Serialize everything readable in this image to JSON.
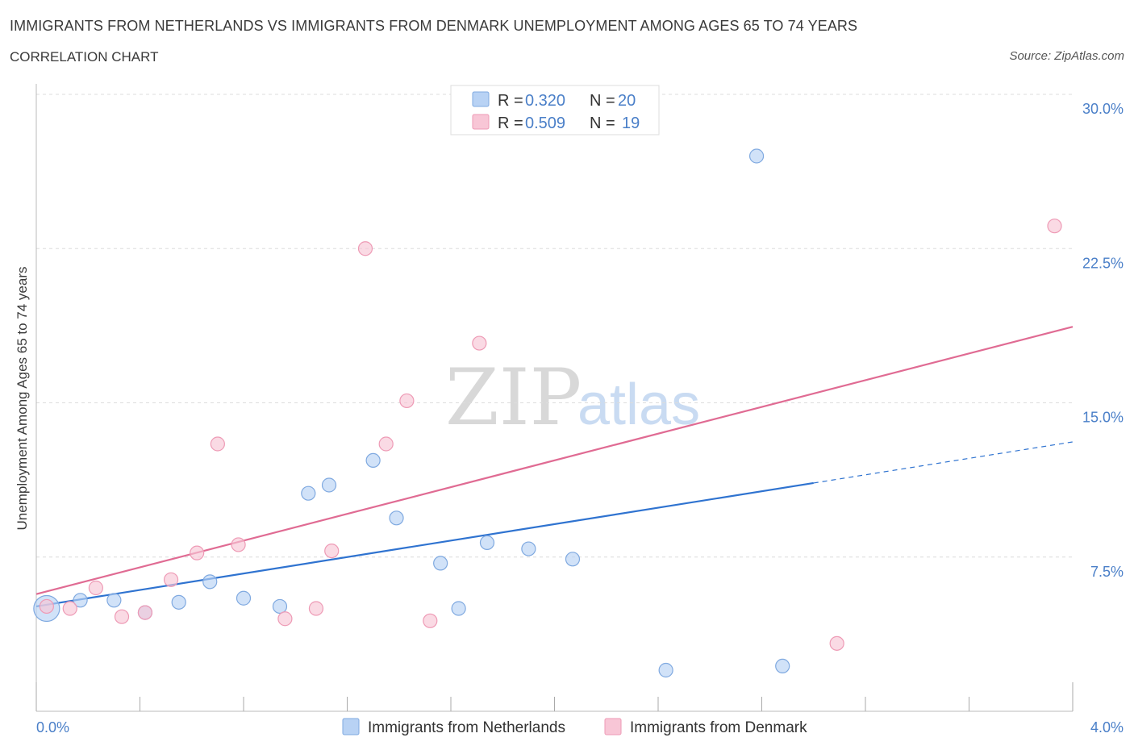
{
  "header": {
    "title": "IMMIGRANTS FROM NETHERLANDS VS IMMIGRANTS FROM DENMARK UNEMPLOYMENT AMONG AGES 65 TO 74 YEARS",
    "subtitle": "CORRELATION CHART",
    "source": "Source: ZipAtlas.com"
  },
  "watermark": {
    "part1": "ZIP",
    "part2": "atlas"
  },
  "legend_stats": {
    "netherlands": {
      "r_label": "R = ",
      "r_value": "0.320",
      "n_label": "N = ",
      "n_value": "20"
    },
    "denmark": {
      "r_label": "R = ",
      "r_value": "0.509",
      "n_label": "N = ",
      "n_value": "19"
    }
  },
  "colors": {
    "netherlands_fill": "#b8d2f4",
    "netherlands_stroke": "#7fa9e0",
    "netherlands_line": "#2f73d0",
    "denmark_fill": "#f8c6d6",
    "denmark_stroke": "#ee9ab5",
    "denmark_line": "#e06b93",
    "tick_text": "#4a7fc8",
    "grid": "#dcdcdc"
  },
  "chart_data": {
    "type": "scatter",
    "title": "IMMIGRANTS FROM NETHERLANDS VS IMMIGRANTS FROM DENMARK UNEMPLOYMENT AMONG AGES 65 TO 74 YEARS",
    "ylabel": "Unemployment Among Ages 65 to 74 years",
    "xlim": [
      0,
      4.0
    ],
    "ylim": [
      0,
      30
    ],
    "x_tick_labels": [
      "0.0%",
      "4.0%"
    ],
    "y_tick_values": [
      7.5,
      15.0,
      22.5,
      30.0
    ],
    "y_tick_labels": [
      "7.5%",
      "15.0%",
      "22.5%",
      "30.0%"
    ],
    "grid": true,
    "legend_position": "bottom-center",
    "series": [
      {
        "name": "Immigrants from Netherlands",
        "points": [
          {
            "x": 0.04,
            "y": 5.0,
            "big": true
          },
          {
            "x": 0.17,
            "y": 5.4
          },
          {
            "x": 0.3,
            "y": 5.4
          },
          {
            "x": 0.42,
            "y": 4.8
          },
          {
            "x": 0.55,
            "y": 5.3
          },
          {
            "x": 0.67,
            "y": 6.3
          },
          {
            "x": 0.8,
            "y": 5.5
          },
          {
            "x": 0.94,
            "y": 5.1
          },
          {
            "x": 1.05,
            "y": 10.6
          },
          {
            "x": 1.13,
            "y": 11.0
          },
          {
            "x": 1.3,
            "y": 12.2
          },
          {
            "x": 1.39,
            "y": 9.4
          },
          {
            "x": 1.56,
            "y": 7.2
          },
          {
            "x": 1.63,
            "y": 5.0
          },
          {
            "x": 1.74,
            "y": 8.2
          },
          {
            "x": 1.9,
            "y": 7.9
          },
          {
            "x": 2.07,
            "y": 7.4
          },
          {
            "x": 2.43,
            "y": 2.0
          },
          {
            "x": 2.78,
            "y": 27.0
          },
          {
            "x": 2.88,
            "y": 2.2
          }
        ],
        "trend": {
          "x0": 0.0,
          "y0": 5.1,
          "x1": 3.0,
          "y1": 11.1,
          "dash_x1": 4.0,
          "dash_y1": 13.1
        }
      },
      {
        "name": "Immigrants from Denmark",
        "points": [
          {
            "x": 0.04,
            "y": 5.1
          },
          {
            "x": 0.13,
            "y": 5.0
          },
          {
            "x": 0.23,
            "y": 6.0
          },
          {
            "x": 0.33,
            "y": 4.6
          },
          {
            "x": 0.42,
            "y": 4.8
          },
          {
            "x": 0.52,
            "y": 6.4
          },
          {
            "x": 0.62,
            "y": 7.7
          },
          {
            "x": 0.7,
            "y": 13.0
          },
          {
            "x": 0.78,
            "y": 8.1
          },
          {
            "x": 0.96,
            "y": 4.5
          },
          {
            "x": 1.08,
            "y": 5.0
          },
          {
            "x": 1.14,
            "y": 7.8
          },
          {
            "x": 1.27,
            "y": 22.5
          },
          {
            "x": 1.35,
            "y": 13.0
          },
          {
            "x": 1.43,
            "y": 15.1
          },
          {
            "x": 1.52,
            "y": 4.4
          },
          {
            "x": 1.71,
            "y": 17.9
          },
          {
            "x": 3.09,
            "y": 3.3
          },
          {
            "x": 3.93,
            "y": 23.6
          }
        ],
        "trend": {
          "x0": 0.0,
          "y0": 5.7,
          "x1": 4.0,
          "y1": 18.7
        }
      }
    ]
  }
}
